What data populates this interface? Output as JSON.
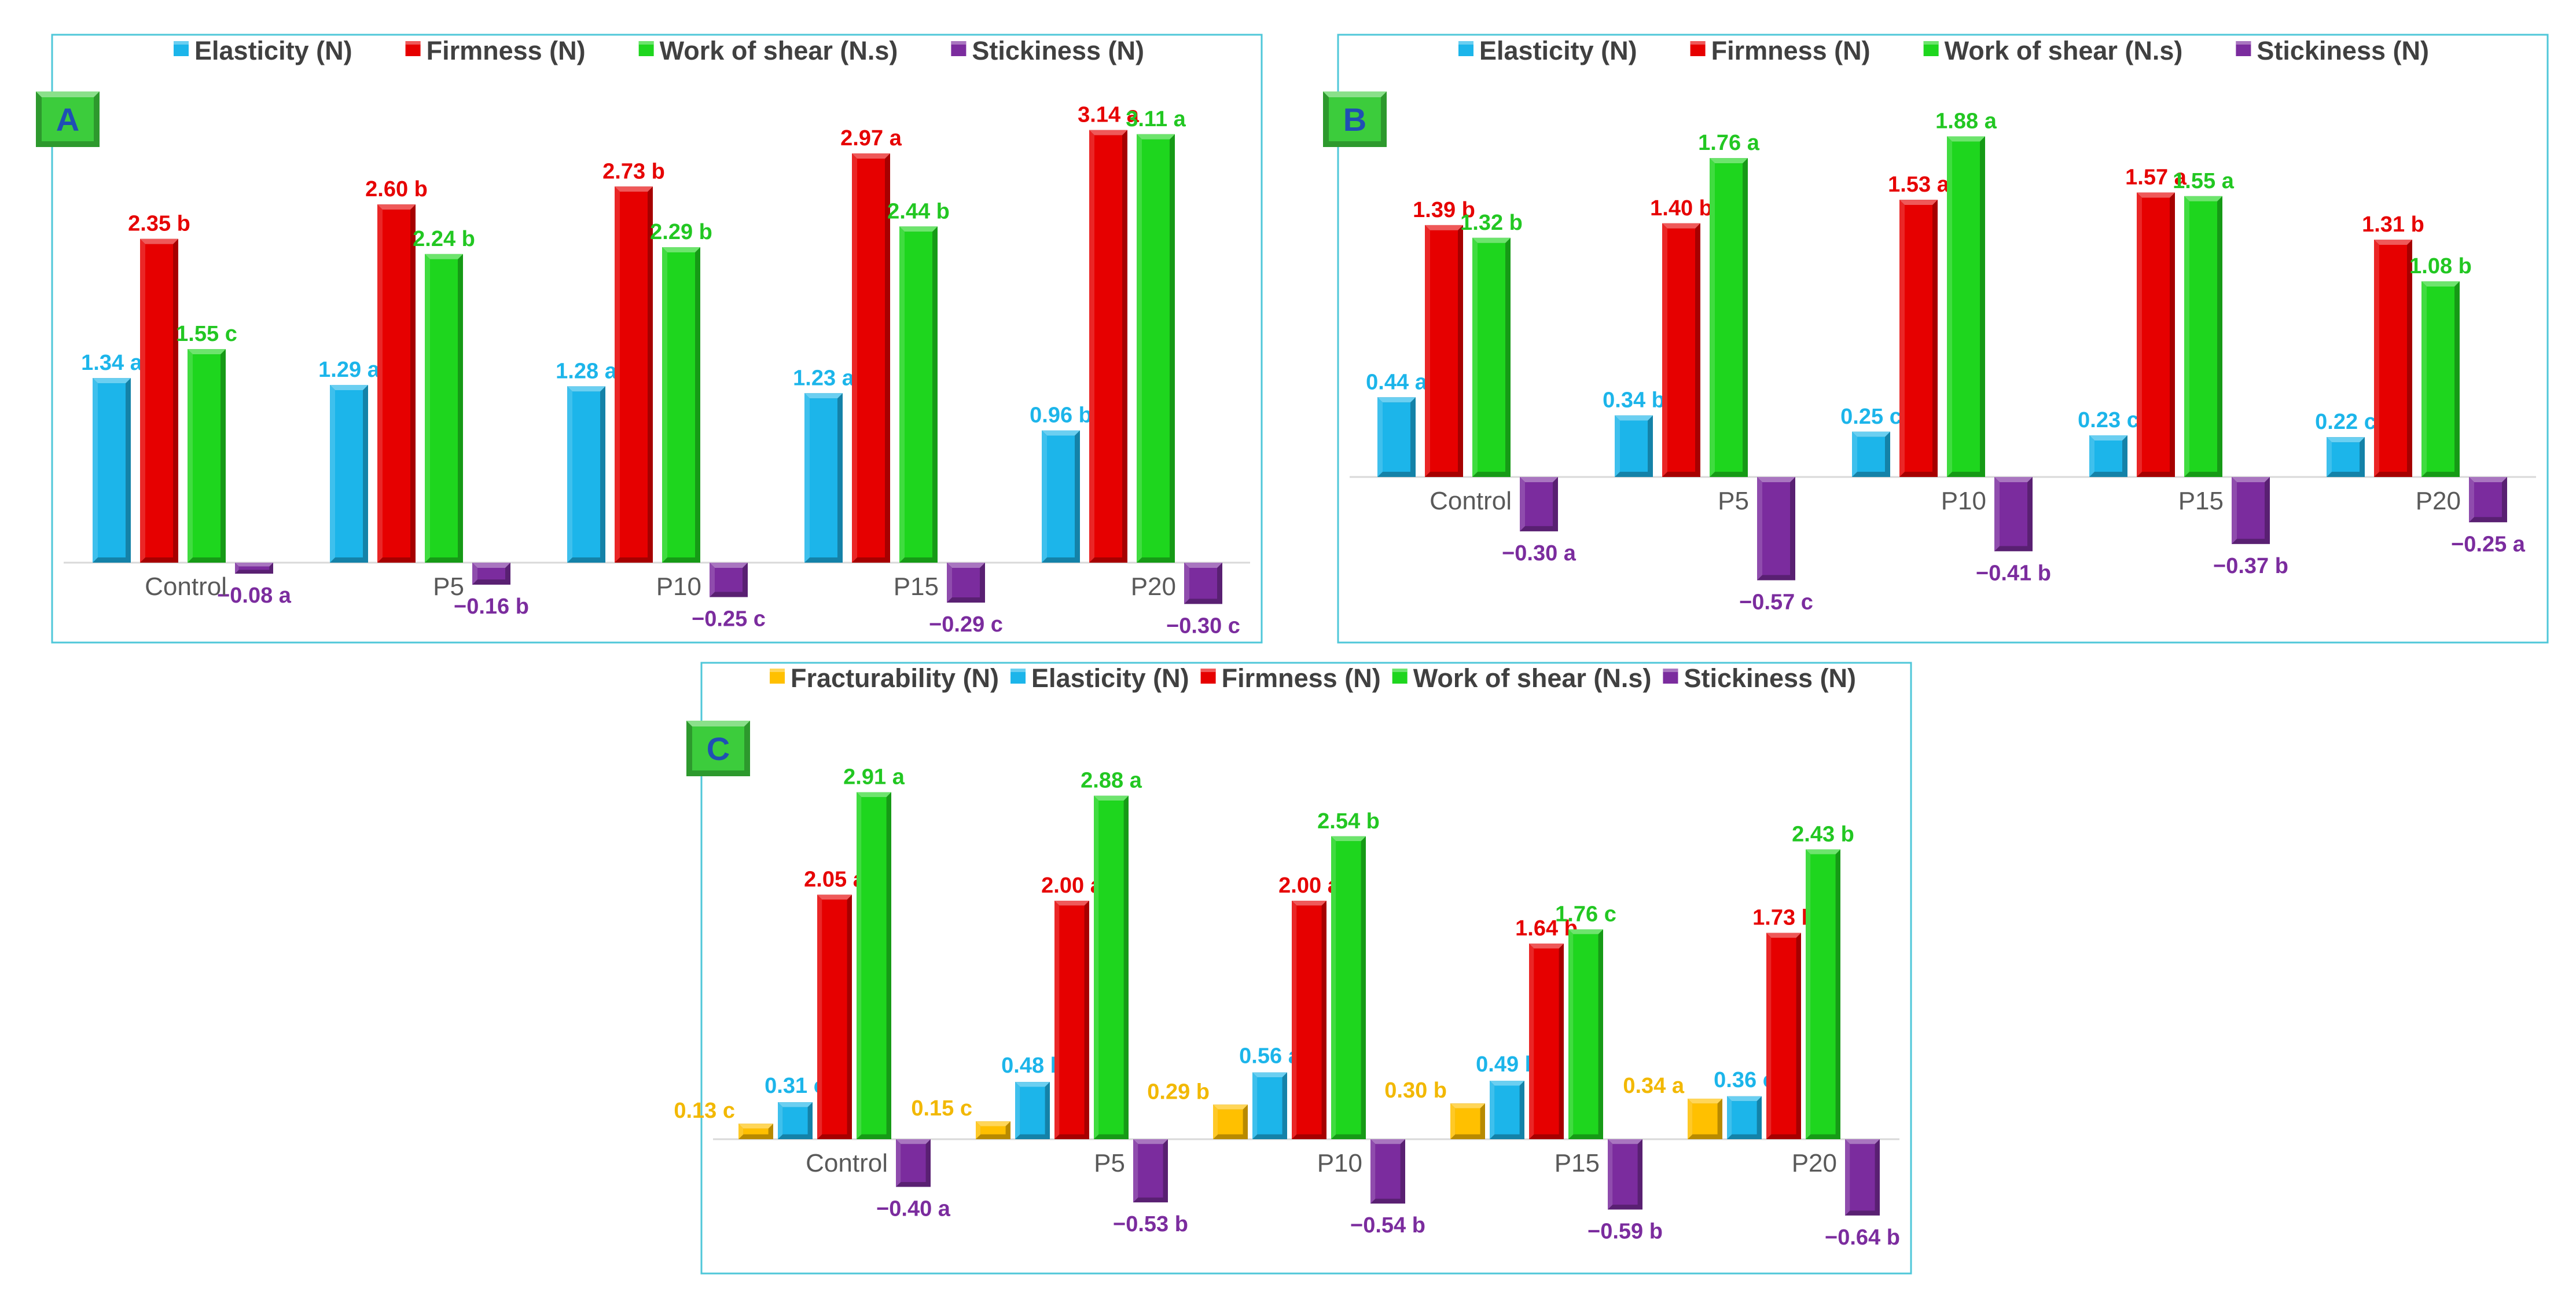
{
  "colors": {
    "Fracturability (N)": "#ffc000",
    "Elasticity (N)": "#1cb5ea",
    "Firmness (N)": "#e60000",
    "Work of shear (N.s)": "#1ed61e",
    "Stickiness (N)": "#7b2c9e",
    "frame": "#4fc7d9",
    "badge": "#3ccc3c"
  },
  "chart_data": [
    {
      "panel": "A",
      "type": "bar",
      "categories": [
        "Control",
        "P5",
        "P10",
        "P15",
        "P20"
      ],
      "legend": [
        "Elasticity (N)",
        "Firmness (N)",
        "Work of shear (N.s)",
        "Stickiness (N)"
      ],
      "legend_position": "top",
      "ylim": [
        -0.5,
        3.2
      ],
      "grid": false,
      "series": [
        {
          "name": "Elasticity (N)",
          "values": [
            1.34,
            1.29,
            1.28,
            1.23,
            0.96
          ],
          "labels": [
            "1.34 a",
            "1.29 a",
            "1.28 a",
            "1.23 a",
            "0.96 b"
          ]
        },
        {
          "name": "Firmness (N)",
          "values": [
            2.35,
            2.6,
            2.73,
            2.97,
            3.14
          ],
          "labels": [
            "2.35 b",
            "2.60 b",
            "2.73 b",
            "2.97 a",
            "3.14 a"
          ]
        },
        {
          "name": "Work of shear (N.s)",
          "values": [
            1.55,
            2.24,
            2.29,
            2.44,
            3.11
          ],
          "labels": [
            "1.55 c",
            "2.24 b",
            "2.29 b",
            "2.44 b",
            "3.11 a"
          ]
        },
        {
          "name": "Stickiness (N)",
          "values": [
            -0.08,
            -0.16,
            -0.25,
            -0.29,
            -0.3
          ],
          "labels": [
            "−0.08 a",
            "−0.16 b",
            "−0.25 c",
            "−0.29 c",
            "−0.30 c"
          ]
        }
      ]
    },
    {
      "panel": "B",
      "type": "bar",
      "categories": [
        "Control",
        "P5",
        "P10",
        "P15",
        "P20"
      ],
      "legend": [
        "Elasticity (N)",
        "Firmness (N)",
        "Work of shear (N.s)",
        "Stickiness (N)"
      ],
      "legend_position": "top",
      "ylim": [
        -0.7,
        2.0
      ],
      "grid": false,
      "series": [
        {
          "name": "Elasticity (N)",
          "values": [
            0.44,
            0.34,
            0.25,
            0.23,
            0.22
          ],
          "labels": [
            "0.44 a",
            "0.34 b",
            "0.25 c",
            "0.23 c",
            "0.22 c"
          ]
        },
        {
          "name": "Firmness (N)",
          "values": [
            1.39,
            1.4,
            1.53,
            1.57,
            1.31
          ],
          "labels": [
            "1.39 b",
            "1.40 b",
            "1.53 a",
            "1.57 a",
            "1.31 b"
          ]
        },
        {
          "name": "Work of shear (N.s)",
          "values": [
            1.32,
            1.76,
            1.88,
            1.55,
            1.08
          ],
          "labels": [
            "1.32 b",
            "1.76 a",
            "1.88 a",
            "1.55 a",
            "1.08 b"
          ]
        },
        {
          "name": "Stickiness (N)",
          "values": [
            -0.3,
            -0.57,
            -0.41,
            -0.37,
            -0.25
          ],
          "labels": [
            "−0.30 a",
            "−0.57 c",
            "−0.41 b",
            "−0.37 b",
            "−0.25 a"
          ]
        }
      ]
    },
    {
      "panel": "C",
      "type": "bar",
      "categories": [
        "Control",
        "P5",
        "P10",
        "P15",
        "P20"
      ],
      "legend": [
        "Fracturability (N)",
        "Elasticity (N)",
        "Firmness (N)",
        "Work of shear (N.s)",
        "Stickiness (N)"
      ],
      "legend_position": "top",
      "ylim": [
        -0.8,
        3.0
      ],
      "grid": false,
      "series": [
        {
          "name": "Fracturability (N)",
          "values": [
            0.13,
            0.15,
            0.29,
            0.3,
            0.34
          ],
          "labels": [
            "0.13 c",
            "0.15 c",
            "0.29 b",
            "0.30 b",
            "0.34 a"
          ]
        },
        {
          "name": "Elasticity (N)",
          "values": [
            0.31,
            0.48,
            0.56,
            0.49,
            0.36
          ],
          "labels": [
            "0.31 c",
            "0.48 b",
            "0.56 a",
            "0.49 b",
            "0.36 c"
          ]
        },
        {
          "name": "Firmness (N)",
          "values": [
            2.05,
            2.0,
            2.0,
            1.64,
            1.73
          ],
          "labels": [
            "2.05 a",
            "2.00 a",
            "2.00 a",
            "1.64 b",
            "1.73 b"
          ]
        },
        {
          "name": "Work of shear (N.s)",
          "values": [
            2.91,
            2.88,
            2.54,
            1.76,
            2.43
          ],
          "labels": [
            "2.91 a",
            "2.88 a",
            "2.54 b",
            "1.76 c",
            "2.43 b"
          ]
        },
        {
          "name": "Stickiness (N)",
          "values": [
            -0.4,
            -0.53,
            -0.54,
            -0.59,
            -0.64
          ],
          "labels": [
            "−0.40 a",
            "−0.53 b",
            "−0.54 b",
            "−0.59 b",
            "−0.64 b"
          ]
        }
      ]
    }
  ]
}
